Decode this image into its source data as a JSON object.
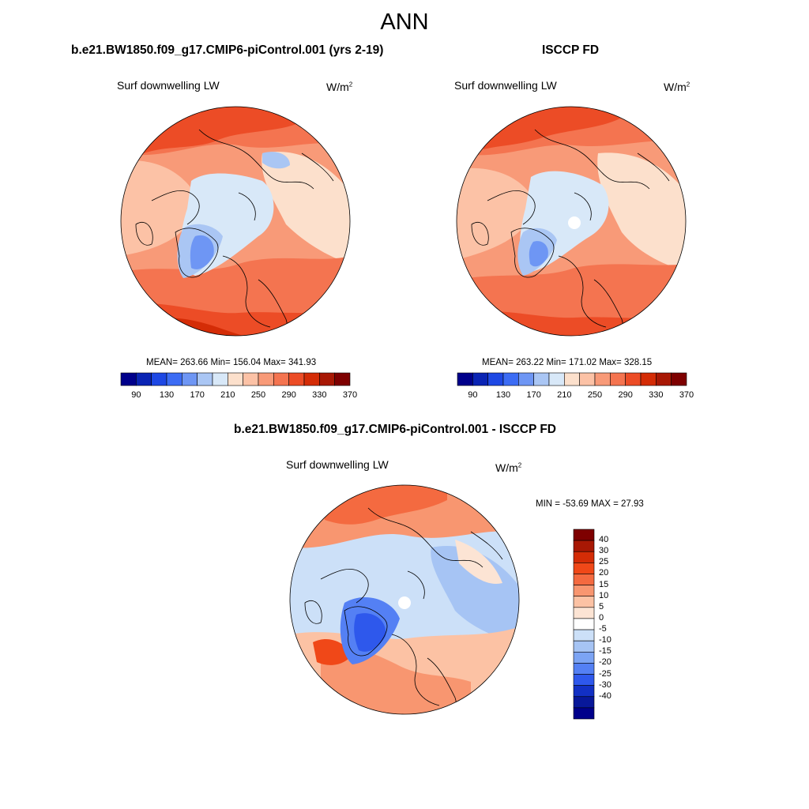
{
  "title": "ANN",
  "panels": [
    {
      "id": "model",
      "case_title": "b.e21.BW1850.f09_g17.CMIP6-piControl.001 (yrs 2-19)",
      "variable": "Surf downwelling LW",
      "units_base": "W/m",
      "units_exp": "2",
      "stats_text": "MEAN= 263.66  Min= 156.04  Max= 341.93",
      "stats": {
        "mean": 263.66,
        "min": 156.04,
        "max": 341.93
      }
    },
    {
      "id": "obs",
      "case_title": "ISCCP FD",
      "variable": "Surf downwelling LW",
      "units_base": "W/m",
      "units_exp": "2",
      "stats_text": "MEAN= 263.22  Min= 171.02  Max= 328.15",
      "stats": {
        "mean": 263.22,
        "min": 171.02,
        "max": 328.15
      }
    },
    {
      "id": "diff",
      "case_title": "b.e21.BW1850.f09_g17.CMIP6-piControl.001 - ISCCP FD",
      "variable": "Surf downwelling LW",
      "units_base": "W/m",
      "units_exp": "2",
      "stats_text": "MIN = -53.69 MAX =  27.93",
      "stats": {
        "min": -53.69,
        "max": 27.93
      }
    }
  ],
  "colorbar_abs": {
    "colors": [
      "#00008b",
      "#0a24b4",
      "#1e48e4",
      "#3c6cf4",
      "#6e96f4",
      "#aac6f4",
      "#d8e8f8",
      "#fce0cc",
      "#fcc2a6",
      "#f89a78",
      "#f47450",
      "#ec4c26",
      "#d42c06",
      "#a81804",
      "#7e0000"
    ],
    "tick_labels": [
      "90",
      "130",
      "170",
      "210",
      "250",
      "290",
      "330",
      "370"
    ]
  },
  "colorbar_diff": {
    "colors": [
      "#7e0000",
      "#a81804",
      "#d42c06",
      "#f04818",
      "#f46a40",
      "#f89670",
      "#fcc2a4",
      "#fce4d4",
      "#ffffff",
      "#cce0f8",
      "#a6c4f4",
      "#7ca4f4",
      "#5480f4",
      "#2e58ec",
      "#1230c4",
      "#08189a",
      "#00008b"
    ],
    "tick_labels": [
      "40",
      "30",
      "25",
      "20",
      "15",
      "10",
      "5",
      "0",
      "-5",
      "-10",
      "-15",
      "-20",
      "-25",
      "-30",
      "-40"
    ]
  },
  "map_colors": {
    "deep_red": "#d42c06",
    "red": "#ec4c26",
    "orange": "#f47450",
    "salmon": "#f89a78",
    "peach": "#fcc2a6",
    "light_peach": "#fce0cc",
    "light_blue": "#d8e8f8",
    "blue_light": "#aac6f4",
    "blue": "#6e96f4",
    "blue_mid": "#3c6cf4",
    "blue_dark": "#1e48e4"
  }
}
